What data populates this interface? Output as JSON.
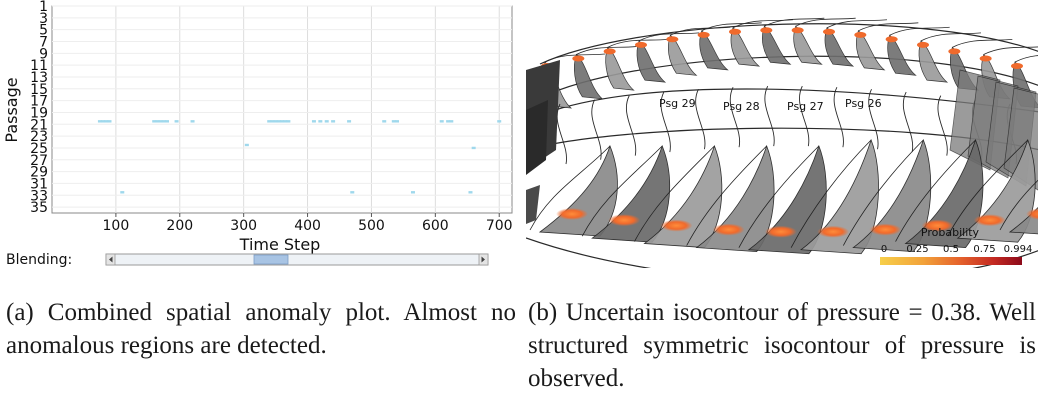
{
  "panel_a": {
    "chart_data": {
      "type": "scatter",
      "xlabel": "Time Step",
      "ylabel": "Passage",
      "xlim": [
        0,
        720
      ],
      "ylim": [
        1,
        36
      ],
      "y_inverted": true,
      "grid": true,
      "x_ticks": [
        100,
        200,
        300,
        400,
        500,
        600,
        700
      ],
      "y_ticks": [
        1,
        3,
        5,
        7,
        9,
        11,
        13,
        15,
        17,
        19,
        21,
        23,
        25,
        27,
        29,
        31,
        33,
        35
      ],
      "point_color": "#9fd8ec",
      "points": [
        {
          "x": 75,
          "y": 20.5
        },
        {
          "x": 80,
          "y": 20.5
        },
        {
          "x": 85,
          "y": 20.5
        },
        {
          "x": 90,
          "y": 20.5
        },
        {
          "x": 160,
          "y": 20.5
        },
        {
          "x": 165,
          "y": 20.5
        },
        {
          "x": 170,
          "y": 20.5
        },
        {
          "x": 175,
          "y": 20.5
        },
        {
          "x": 180,
          "y": 20.5
        },
        {
          "x": 195,
          "y": 20.5
        },
        {
          "x": 220,
          "y": 20.5
        },
        {
          "x": 340,
          "y": 20.5
        },
        {
          "x": 345,
          "y": 20.5
        },
        {
          "x": 350,
          "y": 20.5
        },
        {
          "x": 355,
          "y": 20.5
        },
        {
          "x": 360,
          "y": 20.5
        },
        {
          "x": 365,
          "y": 20.5
        },
        {
          "x": 370,
          "y": 20.5
        },
        {
          "x": 410,
          "y": 20.5
        },
        {
          "x": 420,
          "y": 20.5
        },
        {
          "x": 430,
          "y": 20.5
        },
        {
          "x": 440,
          "y": 20.5
        },
        {
          "x": 465,
          "y": 20.5
        },
        {
          "x": 520,
          "y": 20.5
        },
        {
          "x": 535,
          "y": 20.5
        },
        {
          "x": 540,
          "y": 20.5
        },
        {
          "x": 610,
          "y": 20.5
        },
        {
          "x": 620,
          "y": 20.5
        },
        {
          "x": 625,
          "y": 20.5
        },
        {
          "x": 700,
          "y": 20.5
        },
        {
          "x": 110,
          "y": 32.5
        },
        {
          "x": 305,
          "y": 24.5
        },
        {
          "x": 470,
          "y": 32.5
        },
        {
          "x": 565,
          "y": 32.5
        },
        {
          "x": 655,
          "y": 32.5
        },
        {
          "x": 660,
          "y": 25
        }
      ]
    },
    "blending_label": "Blending:"
  },
  "panel_b": {
    "passage_labels": [
      "Psg 29",
      "Psg 28",
      "Psg 27",
      "Psg 26"
    ],
    "colorbar": {
      "title": "Probability",
      "ticks": [
        "0",
        "0.25",
        "0.5",
        "0.75",
        "0.994"
      ],
      "colors": [
        "#f7cf4a",
        "#f2a33a",
        "#e6652c",
        "#c42a22",
        "#8c0a1a"
      ]
    },
    "blade_color": "#555555",
    "hotspot_color": "#f06a2c"
  },
  "captions": {
    "a": "(a) Combined spatial anomaly plot. Almost no anomalous regions are detected.",
    "b": "(b) Uncertain isocontour of pressure = 0.38. Well structured symmetric isocontour of pressure is observed."
  }
}
